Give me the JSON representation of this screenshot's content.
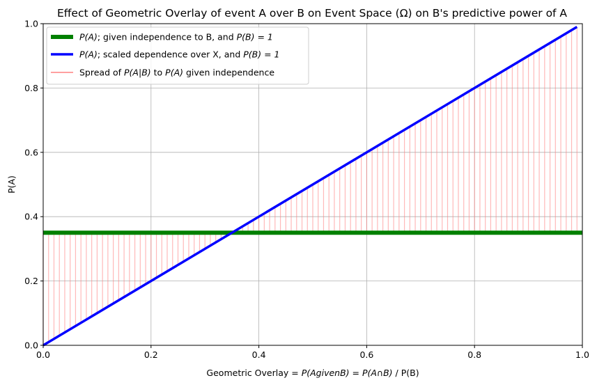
{
  "chart_data": {
    "type": "line",
    "title": "Effect of Geometric Overlay of event A over B on Event Space (Ω) on B's predictive power of A",
    "xlabel": {
      "prefix": "Geometric Overlay = ",
      "expr1": "P(AgivenB)",
      "eq": " = ",
      "expr2": "P(A∩B)",
      "suffix": " / P(B)"
    },
    "ylabel": "P(A)",
    "xlim": [
      0,
      1
    ],
    "ylim": [
      0,
      1
    ],
    "xticks": [
      "0.0",
      "0.2",
      "0.4",
      "0.6",
      "0.8",
      "1.0"
    ],
    "yticks": [
      "0.0",
      "0.2",
      "0.4",
      "0.6",
      "0.8",
      "1.0"
    ],
    "grid": true,
    "legend_position": "top-left",
    "series": [
      {
        "name": "P(A); given independence to B, and P(B) = 1",
        "legend_parts": [
          "P(A)",
          "; given independence to B, and ",
          "P(B) = 1"
        ],
        "color": "#008000",
        "x": [
          0,
          1
        ],
        "y": [
          0.35,
          0.35
        ]
      },
      {
        "name": "P(A); scaled dependence over X, and P(B) = 1",
        "legend_parts": [
          "P(A)",
          "; scaled dependence over X, and ",
          "P(B) = 1"
        ],
        "color": "#0000ff",
        "x": [
          0,
          0.99
        ],
        "y": [
          0,
          0.99
        ]
      },
      {
        "name": "Spread of P(A|B) to P(A) given independence",
        "legend_parts": [
          "Spread of ",
          "P(A|B)",
          " to ",
          "P(A)",
          " given independence"
        ],
        "color": "#ff8080",
        "type": "vlines",
        "x_start": 0,
        "x_step": 0.01,
        "count": 100,
        "y_from": "x",
        "y_to": 0.35
      }
    ]
  }
}
